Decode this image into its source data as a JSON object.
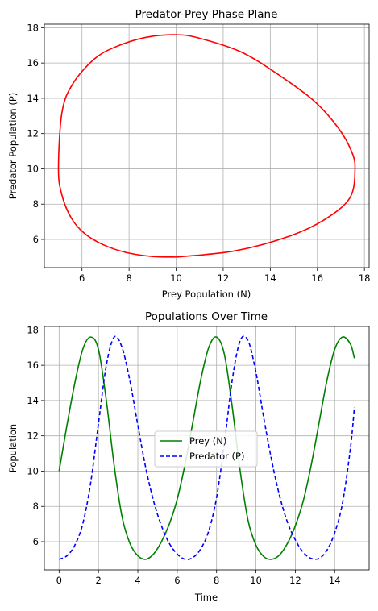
{
  "chart_data": [
    {
      "type": "line",
      "title": "Predator-Prey Phase Plane",
      "xlabel": "Prey Population (N)",
      "ylabel": "Predator Population (P)",
      "xlim": [
        4.4,
        18.2
      ],
      "ylim": [
        4.4,
        18.2
      ],
      "xticks": [
        6,
        8,
        10,
        12,
        14,
        16,
        18
      ],
      "yticks": [
        6,
        8,
        10,
        12,
        14,
        16,
        18
      ],
      "grid": true,
      "series": [
        {
          "color": "#ff0000",
          "style": "solid",
          "x": [
            10.0,
            12.5,
            14.85,
            16.4,
            17.4,
            17.6,
            17.45,
            16.9,
            15.9,
            14.5,
            12.8,
            11.0,
            10.0,
            8.7,
            7.4,
            6.5,
            5.6,
            5.15,
            5.0,
            5.15,
            5.55,
            6.1,
            6.9,
            7.9,
            9.0,
            10.0
          ],
          "y": [
            5.0,
            5.35,
            6.2,
            7.2,
            8.4,
            10.0,
            11.0,
            12.3,
            13.8,
            15.2,
            16.6,
            17.4,
            17.6,
            17.45,
            16.9,
            16.2,
            14.8,
            13.2,
            10.0,
            8.5,
            7.2,
            6.35,
            5.7,
            5.25,
            5.03,
            5.0
          ]
        }
      ]
    },
    {
      "type": "line",
      "title": "Populations Over Time",
      "xlabel": "Time",
      "ylabel": "Population",
      "xlim": [
        -0.75,
        15.75
      ],
      "ylim": [
        4.4,
        18.2
      ],
      "xticks": [
        0,
        2,
        4,
        6,
        8,
        10,
        12,
        14
      ],
      "yticks": [
        6,
        8,
        10,
        12,
        14,
        16,
        18
      ],
      "grid": true,
      "legend_position": "center",
      "series": [
        {
          "name": "Prey (N)",
          "color": "#008000",
          "style": "solid",
          "x": [
            0,
            0.4,
            0.8,
            1.2,
            1.6,
            2.0,
            2.4,
            2.8,
            3.2,
            3.6,
            4.0,
            4.4,
            4.8,
            5.2,
            5.6,
            6.0,
            6.4,
            6.8,
            7.2,
            7.6,
            8.0,
            8.4,
            8.8,
            9.2,
            9.6,
            10.0,
            10.4,
            10.8,
            11.2,
            11.6,
            12.0,
            12.4,
            12.8,
            13.2,
            13.6,
            14.0,
            14.4,
            14.8,
            15.0
          ],
          "y": [
            10.0,
            12.6,
            15.0,
            16.9,
            17.6,
            16.9,
            14.0,
            10.3,
            7.4,
            5.9,
            5.2,
            5.0,
            5.3,
            6.0,
            7.0,
            8.4,
            10.4,
            12.8,
            15.2,
            17.0,
            17.6,
            16.6,
            13.6,
            10.0,
            7.2,
            5.8,
            5.15,
            5.0,
            5.25,
            5.9,
            6.9,
            8.3,
            10.3,
            12.7,
            15.1,
            16.9,
            17.6,
            17.2,
            16.4
          ]
        },
        {
          "name": "Predator (P)",
          "color": "#0000ff",
          "style": "dashed",
          "x": [
            0,
            0.4,
            0.8,
            1.2,
            1.6,
            2.0,
            2.4,
            2.8,
            3.2,
            3.6,
            4.0,
            4.4,
            4.8,
            5.2,
            5.6,
            6.0,
            6.4,
            6.8,
            7.2,
            7.6,
            8.0,
            8.4,
            8.8,
            9.2,
            9.6,
            10.0,
            10.4,
            10.8,
            11.2,
            11.6,
            12.0,
            12.4,
            12.8,
            13.2,
            13.6,
            14.0,
            14.4,
            14.8,
            15.0
          ],
          "y": [
            5.0,
            5.2,
            5.8,
            7.0,
            9.3,
            12.7,
            16.0,
            17.6,
            17.0,
            15.1,
            12.6,
            10.2,
            8.3,
            6.9,
            5.9,
            5.3,
            5.0,
            5.1,
            5.6,
            6.6,
            8.5,
            11.6,
            15.2,
            17.4,
            17.4,
            15.6,
            13.0,
            10.6,
            8.6,
            7.1,
            6.1,
            5.4,
            5.05,
            5.05,
            5.5,
            6.5,
            8.2,
            11.3,
            13.6
          ]
        }
      ]
    }
  ]
}
